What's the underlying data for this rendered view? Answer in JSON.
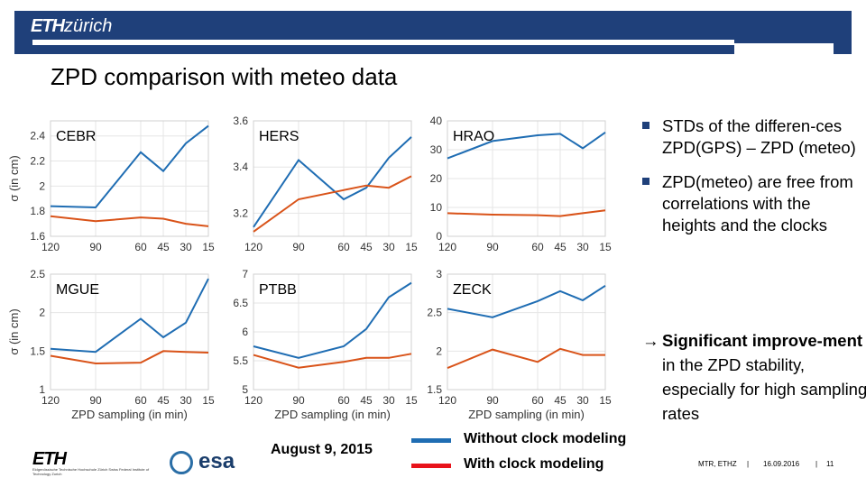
{
  "header": {
    "logo_bold": "ETH",
    "logo_rest": "zürich"
  },
  "title": "ZPD comparison with meteo data",
  "colors": {
    "without": "#1f6db3",
    "with": "#d95319",
    "brand": "#1f407a",
    "legend_red": "#e8131b"
  },
  "chart_data": [
    {
      "type": "line",
      "title": "CEBR",
      "x": [
        120,
        90,
        60,
        45,
        30,
        15
      ],
      "xticks": [
        "120",
        "90",
        "60",
        "45",
        "30",
        "15"
      ],
      "ylim": [
        1.6,
        2.52
      ],
      "yticks": [
        1.6,
        1.8,
        2,
        2.2,
        2.4
      ],
      "ytick_labels": [
        "1.6",
        "1.8",
        "2",
        "2.2",
        "2.4"
      ],
      "ylabel": "σ (in cm)",
      "xlabel": "",
      "series": [
        {
          "name": "Without clock modeling",
          "values": [
            1.84,
            1.83,
            2.27,
            2.12,
            2.34,
            2.48
          ]
        },
        {
          "name": "With clock modeling",
          "values": [
            1.76,
            1.72,
            1.75,
            1.74,
            1.7,
            1.68
          ]
        }
      ]
    },
    {
      "type": "line",
      "title": "HERS",
      "x": [
        120,
        90,
        60,
        45,
        30,
        15
      ],
      "xticks": [
        "120",
        "90",
        "60",
        "45",
        "30",
        "15"
      ],
      "ylim": [
        3.1,
        3.6
      ],
      "yticks": [
        3.2,
        3.4,
        3.6
      ],
      "ytick_labels": [
        "3.2",
        "3.4",
        "3.6"
      ],
      "ylabel": "",
      "xlabel": "",
      "series": [
        {
          "name": "Without clock modeling",
          "values": [
            3.14,
            3.43,
            3.26,
            3.31,
            3.44,
            3.53
          ]
        },
        {
          "name": "With clock modeling",
          "values": [
            3.12,
            3.26,
            3.3,
            3.32,
            3.31,
            3.36
          ]
        }
      ]
    },
    {
      "type": "line",
      "title": "HRAO",
      "x": [
        120,
        90,
        60,
        45,
        30,
        15
      ],
      "xticks": [
        "120",
        "90",
        "60",
        "45",
        "30",
        "15"
      ],
      "ylim": [
        0,
        40
      ],
      "yticks": [
        0,
        10,
        20,
        30,
        40
      ],
      "ytick_labels": [
        "0",
        "10",
        "20",
        "30",
        "40"
      ],
      "ylabel": "",
      "xlabel": "",
      "series": [
        {
          "name": "Without clock modeling",
          "values": [
            27,
            33,
            35,
            35.5,
            30.5,
            36
          ]
        },
        {
          "name": "With clock modeling",
          "values": [
            8,
            7.5,
            7.3,
            7,
            8,
            9
          ]
        }
      ]
    },
    {
      "type": "line",
      "title": "MGUE",
      "x": [
        120,
        90,
        60,
        45,
        30,
        15
      ],
      "xticks": [
        "120",
        "90",
        "60",
        "45",
        "30",
        "15"
      ],
      "ylim": [
        1,
        2.5
      ],
      "yticks": [
        1,
        1.5,
        2,
        2.5
      ],
      "ytick_labels": [
        "1",
        "1.5",
        "2",
        "2.5"
      ],
      "ylabel": "σ (in cm)",
      "xlabel": "ZPD sampling (in min)",
      "series": [
        {
          "name": "Without clock modeling",
          "values": [
            1.53,
            1.49,
            1.92,
            1.68,
            1.87,
            2.44
          ]
        },
        {
          "name": "With clock modeling",
          "values": [
            1.44,
            1.34,
            1.35,
            1.5,
            1.49,
            1.48
          ]
        }
      ]
    },
    {
      "type": "line",
      "title": "PTBB",
      "x": [
        120,
        90,
        60,
        45,
        30,
        15
      ],
      "xticks": [
        "120",
        "90",
        "60",
        "45",
        "30",
        "15"
      ],
      "ylim": [
        5,
        7
      ],
      "yticks": [
        5,
        5.5,
        6,
        6.5,
        7
      ],
      "ytick_labels": [
        "5",
        "5.5",
        "6",
        "6.5",
        "7"
      ],
      "ylabel": "",
      "xlabel": "ZPD sampling (in min)",
      "series": [
        {
          "name": "Without clock modeling",
          "values": [
            5.75,
            5.55,
            5.75,
            6.05,
            6.6,
            6.85
          ]
        },
        {
          "name": "With clock modeling",
          "values": [
            5.6,
            5.38,
            5.48,
            5.55,
            5.55,
            5.62
          ]
        }
      ]
    },
    {
      "type": "line",
      "title": "ZECK",
      "x": [
        120,
        90,
        60,
        45,
        30,
        15
      ],
      "xticks": [
        "120",
        "90",
        "60",
        "45",
        "30",
        "15"
      ],
      "ylim": [
        1.5,
        3
      ],
      "yticks": [
        1.5,
        2,
        2.5,
        3
      ],
      "ytick_labels": [
        "1.5",
        "2",
        "2.5",
        "3"
      ],
      "ylabel": "",
      "xlabel": "ZPD sampling (in min)",
      "series": [
        {
          "name": "Without clock modeling",
          "values": [
            2.55,
            2.44,
            2.65,
            2.78,
            2.66,
            2.85
          ]
        },
        {
          "name": "With clock modeling",
          "values": [
            1.78,
            2.02,
            1.86,
            2.03,
            1.95,
            1.95
          ]
        }
      ]
    }
  ],
  "bullets": [
    "STDs of the differen-ces ZPD(GPS) – ZPD (meteo)",
    "ZPD(meteo) are free from correlations with the heights and the clocks"
  ],
  "conclusion": {
    "arrow": "→",
    "bold": "Significant improve-ment",
    "rest": " in the ZPD stability, especially for high sampling rates"
  },
  "date": "August 9, 2015",
  "legend": {
    "without": "Without clock modeling",
    "with": "With clock modeling"
  },
  "footer": {
    "eth_logo": "ETH",
    "eth_sub": "Eidgenössische Technische Hochschule Zürich Swiss Federal Institute of Technology Zurich",
    "esa": "esa",
    "author": "MTR, ETHZ",
    "date": "16.09.2016",
    "page": "11",
    "sep": "|"
  }
}
